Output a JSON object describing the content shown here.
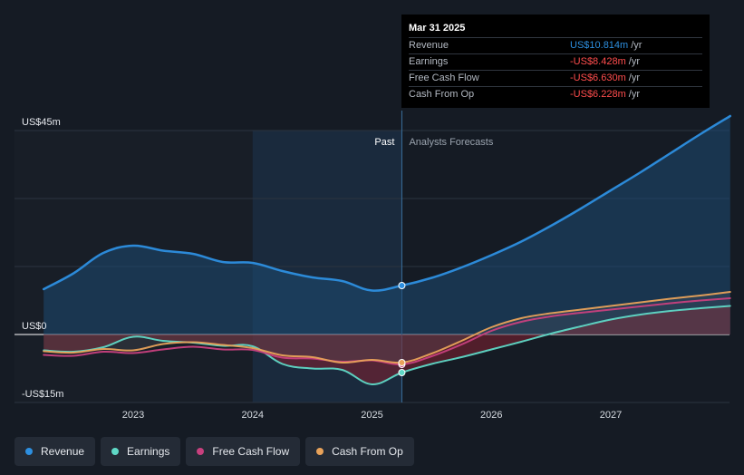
{
  "colors": {
    "revenue": "#2d8fe0",
    "earnings": "#5fd8c6",
    "free_cash_flow": "#c8407e",
    "cash_from_op": "#e8a25a",
    "negative": "#ff4d4d",
    "background": "#151b24"
  },
  "tooltip": {
    "date": "Mar 31 2025",
    "rows": [
      {
        "label": "Revenue",
        "value": "US$10.814m",
        "unit": "/yr"
      },
      {
        "label": "Earnings",
        "value": "-US$8.428m",
        "unit": "/yr"
      },
      {
        "label": "Free Cash Flow",
        "value": "-US$6.630m",
        "unit": "/yr"
      },
      {
        "label": "Cash From Op",
        "value": "-US$6.228m",
        "unit": "/yr"
      }
    ]
  },
  "regions": {
    "past": "Past",
    "forecast": "Analysts Forecasts"
  },
  "legend": [
    {
      "label": "Revenue",
      "key": "revenue"
    },
    {
      "label": "Earnings",
      "key": "earnings"
    },
    {
      "label": "Free Cash Flow",
      "key": "free_cash_flow"
    },
    {
      "label": "Cash From Op",
      "key": "cash_from_op"
    }
  ],
  "chart_data": {
    "type": "line",
    "title": "",
    "xlabel": "",
    "ylabel": "",
    "ylim": [
      -15,
      45
    ],
    "xlim": [
      2022.25,
      2028.0
    ],
    "y_tick_labels": [
      {
        "value": 45,
        "label": "US$45m"
      },
      {
        "value": 0,
        "label": "US$0"
      },
      {
        "value": -15,
        "label": "-US$15m"
      }
    ],
    "x_ticks": [
      {
        "value": 2023,
        "label": "2023"
      },
      {
        "value": 2024,
        "label": "2024"
      },
      {
        "value": 2025,
        "label": "2025"
      },
      {
        "value": 2026,
        "label": "2026"
      },
      {
        "value": 2027,
        "label": "2027"
      }
    ],
    "past_start": 2024.0,
    "divider": 2025.25,
    "series": [
      {
        "name": "Revenue",
        "key": "revenue",
        "x": [
          2022.25,
          2022.5,
          2022.75,
          2023.0,
          2023.25,
          2023.5,
          2023.75,
          2024.0,
          2024.25,
          2024.5,
          2024.75,
          2025.0,
          2025.25,
          2025.5,
          2025.75,
          2026.0,
          2026.25,
          2026.5,
          2026.75,
          2027.0,
          2027.25,
          2027.5,
          2027.75,
          2028.0
        ],
        "values": [
          10.0,
          13.5,
          18.0,
          19.6,
          18.5,
          17.8,
          16.0,
          15.8,
          14.0,
          12.6,
          11.8,
          9.7,
          10.8,
          12.5,
          14.8,
          17.5,
          20.5,
          24.0,
          27.8,
          31.8,
          35.8,
          40.0,
          44.2,
          48.2
        ]
      },
      {
        "name": "Earnings",
        "key": "earnings",
        "x": [
          2022.25,
          2022.5,
          2022.75,
          2023.0,
          2023.25,
          2023.5,
          2023.75,
          2024.0,
          2024.25,
          2024.5,
          2024.75,
          2025.0,
          2025.25,
          2025.5,
          2025.75,
          2026.0,
          2026.25,
          2026.5,
          2026.75,
          2027.0,
          2027.25,
          2027.5,
          2027.75,
          2028.0
        ],
        "values": [
          -3.5,
          -3.8,
          -2.8,
          -0.5,
          -1.4,
          -1.8,
          -2.5,
          -2.6,
          -6.5,
          -7.5,
          -7.8,
          -11.0,
          -8.4,
          -6.5,
          -5.0,
          -3.3,
          -1.6,
          0.2,
          1.8,
          3.3,
          4.4,
          5.2,
          5.8,
          6.3
        ]
      },
      {
        "name": "Free Cash Flow",
        "key": "free_cash_flow",
        "x": [
          2022.25,
          2022.5,
          2022.75,
          2023.0,
          2023.25,
          2023.5,
          2023.75,
          2024.0,
          2024.25,
          2024.5,
          2024.75,
          2025.0,
          2025.25,
          2025.5,
          2025.75,
          2026.0,
          2026.25,
          2026.5,
          2026.75,
          2027.0,
          2027.25,
          2027.5,
          2027.75,
          2028.0
        ],
        "values": [
          -4.5,
          -4.7,
          -3.8,
          -4.1,
          -3.3,
          -2.7,
          -3.3,
          -3.4,
          -5.1,
          -5.3,
          -6.0,
          -5.7,
          -6.6,
          -4.8,
          -2.2,
          0.8,
          2.8,
          4.0,
          4.8,
          5.5,
          6.2,
          6.9,
          7.5,
          8.0
        ]
      },
      {
        "name": "Cash From Op",
        "key": "cash_from_op",
        "x": [
          2022.25,
          2022.5,
          2022.75,
          2023.0,
          2023.25,
          2023.5,
          2023.75,
          2024.0,
          2024.25,
          2024.5,
          2024.75,
          2025.0,
          2025.25,
          2025.5,
          2025.75,
          2026.0,
          2026.25,
          2026.5,
          2026.75,
          2027.0,
          2027.25,
          2027.5,
          2027.75,
          2028.0
        ],
        "values": [
          -3.7,
          -4.0,
          -3.2,
          -3.5,
          -2.1,
          -1.7,
          -2.3,
          -3.0,
          -4.6,
          -5.0,
          -6.2,
          -5.6,
          -6.2,
          -4.2,
          -1.4,
          1.6,
          3.6,
          4.7,
          5.5,
          6.3,
          7.1,
          7.9,
          8.6,
          9.4
        ]
      }
    ]
  }
}
